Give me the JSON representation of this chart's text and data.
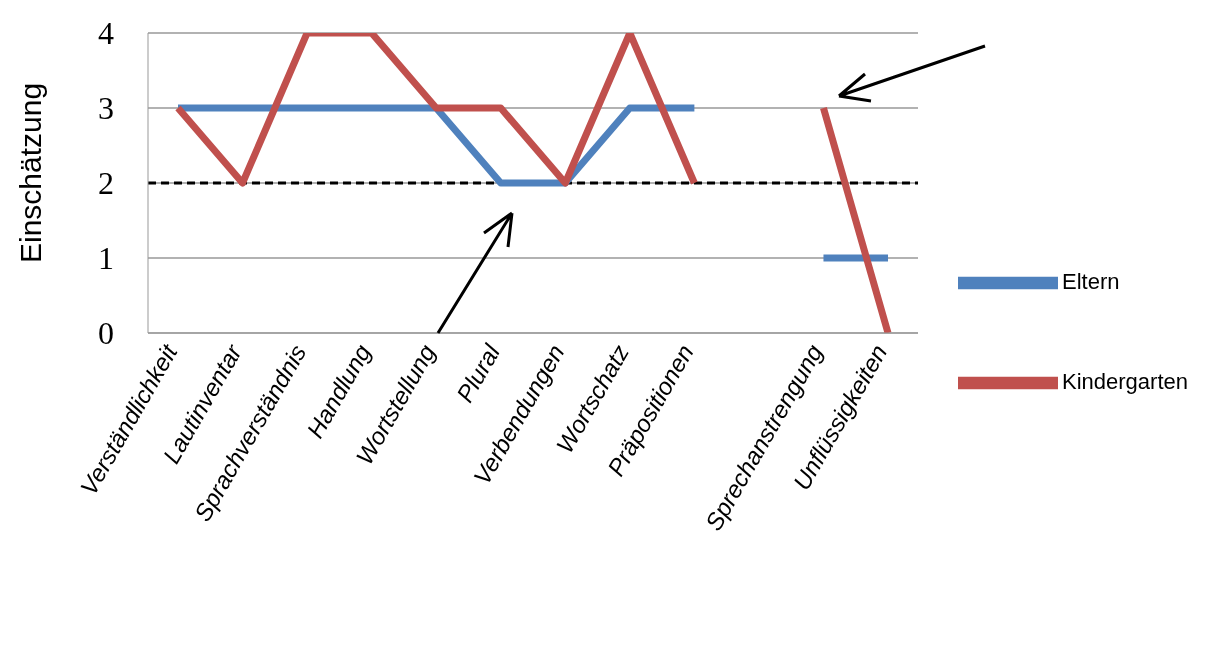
{
  "chart_data": {
    "type": "line",
    "ylabel": "Einschätzung",
    "categories": [
      "Verständlichkeit",
      "Lautinventar",
      "Sprachverständnis",
      "Handlung",
      "Wortstellung",
      "Plural",
      "Verbendungen",
      "Wortschatz",
      "Präpositionen",
      null,
      "Sprechanstrengung",
      "Unflüssigkeiten"
    ],
    "series": [
      {
        "name": "Eltern",
        "color": "#4f81bd",
        "values": [
          3,
          3,
          3,
          3,
          3,
          2,
          2,
          3,
          3,
          null,
          1,
          1
        ]
      },
      {
        "name": "Kindergarten",
        "color": "#c0504d",
        "values": [
          3,
          2,
          4,
          4,
          3,
          3,
          2,
          4,
          2,
          null,
          3,
          0
        ]
      }
    ],
    "ylim": [
      0,
      4
    ],
    "yticks": [
      0,
      1,
      2,
      3,
      4
    ],
    "grid": "y",
    "legend": "right",
    "marker": "none",
    "line_style": "solid",
    "ref_lines": [
      {
        "axis": "y",
        "value": 2,
        "color": "#000000",
        "line_style": "dashed"
      }
    ]
  }
}
